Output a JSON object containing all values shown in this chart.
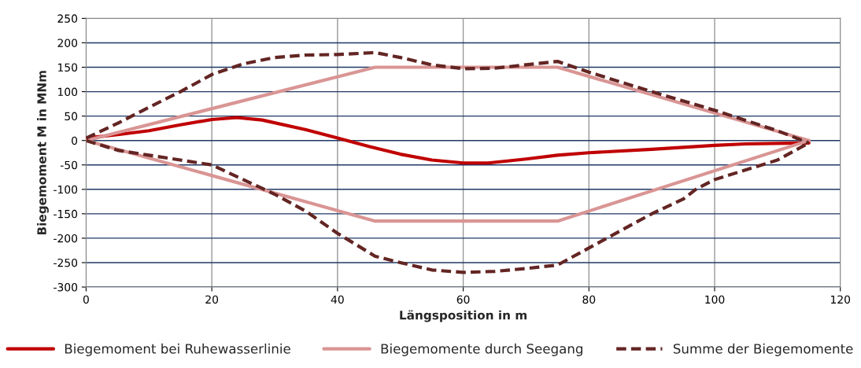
{
  "chart_data": {
    "type": "line",
    "xlabel": "Längsposition in m",
    "ylabel": "Biegemoment M in MNm",
    "xlim": [
      0,
      120
    ],
    "xticks": [
      0,
      20,
      40,
      60,
      80,
      100,
      120
    ],
    "ylim": [
      -300,
      250
    ],
    "yticks": [
      -300,
      -250,
      -200,
      -150,
      -100,
      -50,
      0,
      50,
      100,
      150,
      200,
      250
    ],
    "grid": true,
    "legend": "bottom",
    "marker": "none",
    "series": [
      {
        "name": "Biegemoment bei Ruhewasserlinie",
        "color": "#c00000",
        "line_style": "solid",
        "x": [
          0,
          5,
          10,
          15,
          20,
          24,
          28,
          35,
          40,
          45,
          50,
          55,
          60,
          64,
          70,
          75,
          80,
          90,
          100,
          105,
          115
        ],
        "values": [
          5,
          12,
          20,
          32,
          43,
          47,
          42,
          22,
          5,
          -12,
          -28,
          -40,
          -46,
          -46,
          -38,
          -30,
          -25,
          -18,
          -10,
          -7,
          -5
        ]
      },
      {
        "name": "Biegemomente durch Seegang",
        "color": "#d99594",
        "line_style": "solid",
        "x": [
          0,
          46,
          75,
          115
        ],
        "values": [
          0,
          150,
          150,
          0
        ]
      },
      {
        "color": "#d99594",
        "line_style": "solid",
        "x": [
          0,
          46,
          75,
          115
        ],
        "values": [
          0,
          -165,
          -165,
          0
        ]
      },
      {
        "name": "Summe der Biegemomente",
        "color": "#632523",
        "line_style": "dashed",
        "x": [
          0,
          5,
          10,
          15,
          20,
          25,
          30,
          35,
          40,
          46,
          50,
          55,
          60,
          65,
          70,
          75,
          80,
          90,
          100,
          110,
          115
        ],
        "values": [
          5,
          35,
          68,
          100,
          135,
          157,
          170,
          175,
          176,
          180,
          170,
          155,
          147,
          148,
          155,
          162,
          140,
          100,
          62,
          20,
          -5
        ]
      },
      {
        "color": "#632523",
        "line_style": "dashed",
        "x": [
          0,
          5,
          10,
          15,
          20,
          25,
          30,
          35,
          40,
          46,
          50,
          55,
          60,
          65,
          70,
          75,
          80,
          85,
          90,
          95,
          97,
          100,
          110,
          115
        ],
        "values": [
          0,
          -20,
          -30,
          -40,
          -50,
          -80,
          -110,
          -145,
          -190,
          -237,
          -250,
          -265,
          -270,
          -268,
          -262,
          -255,
          -220,
          -185,
          -150,
          -120,
          -100,
          -80,
          -40,
          -5
        ]
      }
    ]
  }
}
